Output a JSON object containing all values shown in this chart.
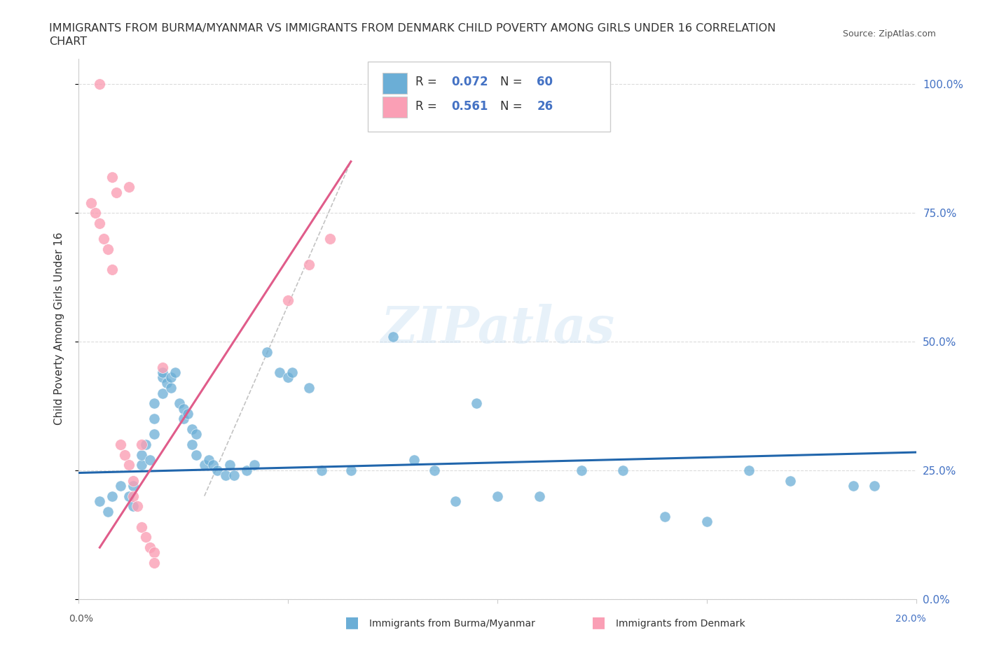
{
  "title": "IMMIGRANTS FROM BURMA/MYANMAR VS IMMIGRANTS FROM DENMARK CHILD POVERTY AMONG GIRLS UNDER 16 CORRELATION\nCHART",
  "source": "Source: ZipAtlas.com",
  "ylabel": "Child Poverty Among Girls Under 16",
  "xlim": [
    0.0,
    0.2
  ],
  "ylim": [
    0.0,
    1.05
  ],
  "yticks": [
    0.0,
    0.25,
    0.5,
    0.75,
    1.0
  ],
  "ytick_labels": [
    "0.0%",
    "25.0%",
    "50.0%",
    "75.0%",
    "100.0%"
  ],
  "grid_color": "#cccccc",
  "background_color": "#ffffff",
  "legend_R1": "0.072",
  "legend_N1": "60",
  "legend_R2": "0.561",
  "legend_N2": "26",
  "color_blue": "#6baed6",
  "color_pink": "#fa9fb5",
  "line_blue": "#2166ac",
  "line_pink": "#e05c8a",
  "line_gray": "#aaaaaa",
  "R_color": "#4472c4",
  "blue_scatter": [
    [
      0.005,
      0.19
    ],
    [
      0.007,
      0.17
    ],
    [
      0.008,
      0.2
    ],
    [
      0.01,
      0.22
    ],
    [
      0.012,
      0.2
    ],
    [
      0.013,
      0.18
    ],
    [
      0.013,
      0.22
    ],
    [
      0.015,
      0.26
    ],
    [
      0.015,
      0.28
    ],
    [
      0.016,
      0.3
    ],
    [
      0.017,
      0.27
    ],
    [
      0.018,
      0.32
    ],
    [
      0.018,
      0.38
    ],
    [
      0.018,
      0.35
    ],
    [
      0.02,
      0.4
    ],
    [
      0.02,
      0.43
    ],
    [
      0.02,
      0.44
    ],
    [
      0.021,
      0.42
    ],
    [
      0.022,
      0.41
    ],
    [
      0.022,
      0.43
    ],
    [
      0.023,
      0.44
    ],
    [
      0.024,
      0.38
    ],
    [
      0.025,
      0.35
    ],
    [
      0.025,
      0.37
    ],
    [
      0.026,
      0.36
    ],
    [
      0.027,
      0.33
    ],
    [
      0.027,
      0.3
    ],
    [
      0.028,
      0.28
    ],
    [
      0.028,
      0.32
    ],
    [
      0.03,
      0.26
    ],
    [
      0.031,
      0.27
    ],
    [
      0.032,
      0.26
    ],
    [
      0.033,
      0.25
    ],
    [
      0.035,
      0.24
    ],
    [
      0.036,
      0.26
    ],
    [
      0.037,
      0.24
    ],
    [
      0.04,
      0.25
    ],
    [
      0.042,
      0.26
    ],
    [
      0.045,
      0.48
    ],
    [
      0.048,
      0.44
    ],
    [
      0.05,
      0.43
    ],
    [
      0.051,
      0.44
    ],
    [
      0.055,
      0.41
    ],
    [
      0.058,
      0.25
    ],
    [
      0.065,
      0.25
    ],
    [
      0.075,
      0.51
    ],
    [
      0.08,
      0.27
    ],
    [
      0.085,
      0.25
    ],
    [
      0.09,
      0.19
    ],
    [
      0.095,
      0.38
    ],
    [
      0.1,
      0.2
    ],
    [
      0.11,
      0.2
    ],
    [
      0.12,
      0.25
    ],
    [
      0.13,
      0.25
    ],
    [
      0.14,
      0.16
    ],
    [
      0.15,
      0.15
    ],
    [
      0.16,
      0.25
    ],
    [
      0.17,
      0.23
    ],
    [
      0.185,
      0.22
    ],
    [
      0.19,
      0.22
    ]
  ],
  "pink_scatter": [
    [
      0.003,
      0.77
    ],
    [
      0.004,
      0.75
    ],
    [
      0.005,
      0.73
    ],
    [
      0.006,
      0.7
    ],
    [
      0.007,
      0.68
    ],
    [
      0.008,
      0.64
    ],
    [
      0.008,
      0.82
    ],
    [
      0.009,
      0.79
    ],
    [
      0.01,
      0.3
    ],
    [
      0.011,
      0.28
    ],
    [
      0.012,
      0.26
    ],
    [
      0.013,
      0.23
    ],
    [
      0.013,
      0.2
    ],
    [
      0.014,
      0.18
    ],
    [
      0.015,
      0.3
    ],
    [
      0.015,
      0.14
    ],
    [
      0.016,
      0.12
    ],
    [
      0.017,
      0.1
    ],
    [
      0.018,
      0.09
    ],
    [
      0.018,
      0.07
    ],
    [
      0.05,
      0.58
    ],
    [
      0.055,
      0.65
    ],
    [
      0.06,
      0.7
    ],
    [
      0.005,
      1.0
    ],
    [
      0.012,
      0.8
    ],
    [
      0.02,
      0.45
    ]
  ],
  "blue_line": {
    "x0": 0.0,
    "y0": 0.245,
    "x1": 0.2,
    "y1": 0.285
  },
  "pink_line": {
    "x0": 0.005,
    "y0": 0.1,
    "x1": 0.065,
    "y1": 0.85
  },
  "gray_line": {
    "x0": 0.03,
    "y0": 0.2,
    "x1": 0.065,
    "y1": 0.85
  }
}
